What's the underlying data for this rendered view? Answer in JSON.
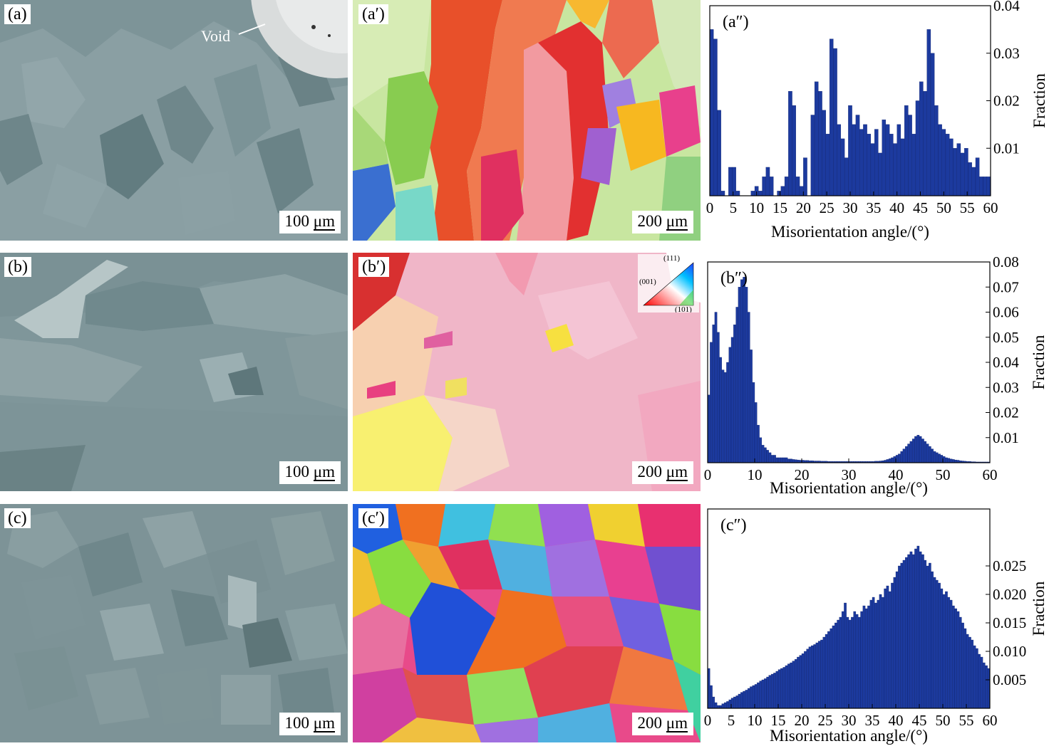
{
  "panels": {
    "a": {
      "label": "(a)",
      "scale": "100 μm",
      "scale_num": "100",
      "scale_unit": "μm",
      "void": "Void"
    },
    "b": {
      "label": "(b)",
      "scale": "100 μm",
      "scale_num": "100",
      "scale_unit": "μm"
    },
    "c": {
      "label": "(c)",
      "scale": "100 μm",
      "scale_num": "100",
      "scale_unit": "μm"
    },
    "a1": {
      "label": "(a′)",
      "scale": "200 μm",
      "scale_num": "200",
      "scale_unit": "μm"
    },
    "b1": {
      "label": "(b′)",
      "scale": "200 μm",
      "scale_num": "200",
      "scale_unit": "μm",
      "ipf": {
        "p111": "(111)",
        "p001": "(001)",
        "p101": "(101)"
      }
    },
    "c1": {
      "label": "(c′)",
      "scale": "200 μm",
      "scale_num": "200",
      "scale_unit": "μm"
    }
  },
  "colors": {
    "bar": "#1c3a9e",
    "bar_edge": "#0d1f66",
    "sem": "#7f959a"
  },
  "chart_data": [
    {
      "type": "bar",
      "label": "(a″)",
      "xlabel": "Misorientation angle/(°)",
      "ylabel": "Fraction",
      "xlim": [
        0,
        60
      ],
      "ylim": [
        0,
        0.04
      ],
      "xticks": [
        0,
        5,
        10,
        15,
        20,
        25,
        30,
        35,
        40,
        45,
        50,
        55,
        60
      ],
      "yticks": [
        0.01,
        0.02,
        0.03,
        0.04
      ],
      "ytick_labels": [
        "0.01",
        "0.02",
        "0.03",
        "0.04"
      ],
      "bin_width": 0.8,
      "x": [
        0.4,
        1.2,
        2,
        2.8,
        3.6,
        4.4,
        5.2,
        6,
        6.8,
        7.6,
        8.4,
        9.2,
        10,
        10.8,
        11.6,
        12.4,
        13.2,
        14,
        14.8,
        15.6,
        16.4,
        17.2,
        18,
        18.8,
        19.6,
        20.4,
        21.2,
        22,
        22.8,
        23.6,
        24.4,
        25.2,
        26,
        26.8,
        27.6,
        28.4,
        29.2,
        30,
        30.8,
        31.6,
        32.4,
        33.2,
        34,
        34.8,
        35.6,
        36.4,
        37.2,
        38,
        38.8,
        39.6,
        40.4,
        41.2,
        42,
        42.8,
        43.6,
        44.4,
        45.2,
        46,
        46.8,
        47.6,
        48.4,
        49.2,
        50,
        50.8,
        51.6,
        52.4,
        53.2,
        54,
        54.8,
        55.6,
        56.4,
        57.2,
        58,
        58.8,
        59.6
      ],
      "values": [
        0.035,
        0.033,
        0.018,
        0.001,
        0.0,
        0.006,
        0.006,
        0.001,
        0.0,
        0.0,
        0.0,
        0.001,
        0.002,
        0.001,
        0.004,
        0.006,
        0.004,
        0.0,
        0.001,
        0.002,
        0.004,
        0.022,
        0.019,
        0.004,
        0.002,
        0.008,
        0.0,
        0.017,
        0.024,
        0.022,
        0.018,
        0.013,
        0.033,
        0.031,
        0.015,
        0.012,
        0.008,
        0.019,
        0.015,
        0.017,
        0.014,
        0.015,
        0.013,
        0.011,
        0.014,
        0.009,
        0.016,
        0.015,
        0.013,
        0.011,
        0.015,
        0.012,
        0.019,
        0.017,
        0.013,
        0.02,
        0.024,
        0.022,
        0.035,
        0.03,
        0.019,
        0.015,
        0.014,
        0.013,
        0.012,
        0.01,
        0.011,
        0.009,
        0.01,
        0.007,
        0.006,
        0.008,
        0.004,
        0.004,
        0.004
      ]
    },
    {
      "type": "bar",
      "label": "(b″)",
      "xlabel": "Misorientation angle/(°)",
      "ylabel": "Fraction",
      "xlim": [
        0,
        60
      ],
      "ylim": [
        0,
        0.08
      ],
      "xticks": [
        0,
        10,
        20,
        30,
        40,
        50,
        60
      ],
      "yticks": [
        0.01,
        0.02,
        0.03,
        0.04,
        0.05,
        0.06,
        0.07,
        0.08
      ],
      "ytick_labels": [
        "0.01",
        "0.02",
        "0.03",
        "0.04",
        "0.05",
        "0.06",
        "0.07",
        "0.08"
      ],
      "bin_width": 0.5,
      "x": [
        0.25,
        0.75,
        1.25,
        1.75,
        2.25,
        2.75,
        3.25,
        3.75,
        4.25,
        4.75,
        5.25,
        5.75,
        6.25,
        6.75,
        7.25,
        7.75,
        8.25,
        8.75,
        9.25,
        9.75,
        10.25,
        10.75,
        11.25,
        11.75,
        12.25,
        12.75,
        13.25,
        13.75,
        14.25,
        14.75,
        15.25,
        15.75,
        16.25,
        16.75,
        17.25,
        17.75,
        18.25,
        18.75,
        19.25,
        19.75,
        20.25,
        20.75,
        21.25,
        21.75,
        22.25,
        22.75,
        23.25,
        23.75,
        24.25,
        24.75,
        25.25,
        25.75,
        26.25,
        26.75,
        27.25,
        27.75,
        28.25,
        28.75,
        29.25,
        29.75,
        30.25,
        30.75,
        31.25,
        31.75,
        32.25,
        32.75,
        33.25,
        33.75,
        34.25,
        34.75,
        35.25,
        35.75,
        36.25,
        36.75,
        37.25,
        37.75,
        38.25,
        38.75,
        39.25,
        39.75,
        40.25,
        40.75,
        41.25,
        41.75,
        42.25,
        42.75,
        43.25,
        43.75,
        44.25,
        44.75,
        45.25,
        45.75,
        46.25,
        46.75,
        47.25,
        47.75,
        48.25,
        48.75,
        49.25,
        49.75,
        50.25,
        50.75,
        51.25,
        51.75,
        52.25,
        52.75,
        53.25,
        53.75,
        54.25,
        54.75,
        55.25,
        55.75,
        56.25,
        56.75,
        57.25,
        57.75,
        58.25,
        58.75,
        59.25,
        59.75
      ],
      "values": [
        0.027,
        0.048,
        0.055,
        0.06,
        0.052,
        0.042,
        0.037,
        0.036,
        0.04,
        0.046,
        0.05,
        0.055,
        0.062,
        0.07,
        0.073,
        0.074,
        0.07,
        0.06,
        0.045,
        0.032,
        0.024,
        0.015,
        0.01,
        0.007,
        0.006,
        0.005,
        0.004,
        0.003,
        0.003,
        0.002,
        0.002,
        0.002,
        0.002,
        0.002,
        0.0015,
        0.0015,
        0.0013,
        0.0012,
        0.0011,
        0.001,
        0.001,
        0.0009,
        0.0009,
        0.0008,
        0.0008,
        0.0007,
        0.0007,
        0.0007,
        0.0006,
        0.0006,
        0.0006,
        0.0005,
        0.0005,
        0.0005,
        0.0005,
        0.0005,
        0.0005,
        0.0005,
        0.0005,
        0.0005,
        0.0005,
        0.0005,
        0.0005,
        0.0005,
        0.0005,
        0.0005,
        0.0005,
        0.0005,
        0.0005,
        0.0005,
        0.0005,
        0.0006,
        0.0006,
        0.0007,
        0.0008,
        0.001,
        0.0013,
        0.0016,
        0.002,
        0.0025,
        0.003,
        0.0035,
        0.0045,
        0.0055,
        0.0065,
        0.0075,
        0.0085,
        0.0095,
        0.0105,
        0.011,
        0.0105,
        0.0095,
        0.0085,
        0.0075,
        0.0065,
        0.0055,
        0.0045,
        0.004,
        0.0035,
        0.003,
        0.0025,
        0.002,
        0.0018,
        0.0015,
        0.0013,
        0.0011,
        0.001,
        0.0008,
        0.0007,
        0.0006,
        0.0005,
        0.0005,
        0.0004,
        0.0004,
        0.0003,
        0.0003,
        0.0003,
        0.0003,
        0.0003,
        0.0003
      ]
    },
    {
      "type": "bar",
      "label": "(c″)",
      "xlabel": "Misorientation angle/(°)",
      "ylabel": "Fraction",
      "xlim": [
        0,
        60
      ],
      "ylim": [
        0,
        0.035
      ],
      "xticks": [
        0,
        5,
        10,
        15,
        20,
        25,
        30,
        35,
        40,
        45,
        50,
        55,
        60
      ],
      "yticks": [
        0.005,
        0.01,
        0.015,
        0.02,
        0.025
      ],
      "ytick_labels": [
        "0.005",
        "0.010",
        "0.015",
        "0.020",
        "0.025"
      ],
      "bin_width": 0.5,
      "x": [
        0.25,
        0.75,
        1.25,
        1.75,
        2.25,
        2.75,
        3.25,
        3.75,
        4.25,
        4.75,
        5.25,
        5.75,
        6.25,
        6.75,
        7.25,
        7.75,
        8.25,
        8.75,
        9.25,
        9.75,
        10.25,
        10.75,
        11.25,
        11.75,
        12.25,
        12.75,
        13.25,
        13.75,
        14.25,
        14.75,
        15.25,
        15.75,
        16.25,
        16.75,
        17.25,
        17.75,
        18.25,
        18.75,
        19.25,
        19.75,
        20.25,
        20.75,
        21.25,
        21.75,
        22.25,
        22.75,
        23.25,
        23.75,
        24.25,
        24.75,
        25.25,
        25.75,
        26.25,
        26.75,
        27.25,
        27.75,
        28.25,
        28.75,
        29.25,
        29.75,
        30.25,
        30.75,
        31.25,
        31.75,
        32.25,
        32.75,
        33.25,
        33.75,
        34.25,
        34.75,
        35.25,
        35.75,
        36.25,
        36.75,
        37.25,
        37.75,
        38.25,
        38.75,
        39.25,
        39.75,
        40.25,
        40.75,
        41.25,
        41.75,
        42.25,
        42.75,
        43.25,
        43.75,
        44.25,
        44.75,
        45.25,
        45.75,
        46.25,
        46.75,
        47.25,
        47.75,
        48.25,
        48.75,
        49.25,
        49.75,
        50.25,
        50.75,
        51.25,
        51.75,
        52.25,
        52.75,
        53.25,
        53.75,
        54.25,
        54.75,
        55.25,
        55.75,
        56.25,
        56.75,
        57.25,
        57.75,
        58.25,
        58.75,
        59.25,
        59.75
      ],
      "values": [
        0.007,
        0.004,
        0.002,
        0.001,
        0.0005,
        0.0005,
        0.0008,
        0.001,
        0.0012,
        0.0015,
        0.0018,
        0.002,
        0.0022,
        0.0025,
        0.0028,
        0.003,
        0.0032,
        0.0035,
        0.0038,
        0.004,
        0.0042,
        0.0045,
        0.0048,
        0.005,
        0.0052,
        0.0055,
        0.0058,
        0.006,
        0.0062,
        0.0065,
        0.0068,
        0.007,
        0.0072,
        0.0075,
        0.0078,
        0.008,
        0.0083,
        0.0086,
        0.009,
        0.0093,
        0.0096,
        0.01,
        0.0104,
        0.0108,
        0.011,
        0.0112,
        0.0115,
        0.0118,
        0.012,
        0.0125,
        0.013,
        0.0135,
        0.014,
        0.0145,
        0.015,
        0.0155,
        0.016,
        0.017,
        0.0185,
        0.016,
        0.0155,
        0.016,
        0.017,
        0.0165,
        0.016,
        0.017,
        0.018,
        0.0175,
        0.018,
        0.019,
        0.0195,
        0.0185,
        0.019,
        0.02,
        0.0195,
        0.021,
        0.0215,
        0.0205,
        0.022,
        0.023,
        0.024,
        0.025,
        0.0255,
        0.026,
        0.0265,
        0.027,
        0.0275,
        0.027,
        0.028,
        0.0285,
        0.0275,
        0.027,
        0.026,
        0.025,
        0.0255,
        0.024,
        0.023,
        0.0225,
        0.022,
        0.021,
        0.02,
        0.0205,
        0.0195,
        0.019,
        0.018,
        0.0175,
        0.017,
        0.016,
        0.015,
        0.014,
        0.013,
        0.0125,
        0.012,
        0.011,
        0.0105,
        0.0095,
        0.009,
        0.008,
        0.0075,
        0.007
      ]
    }
  ]
}
